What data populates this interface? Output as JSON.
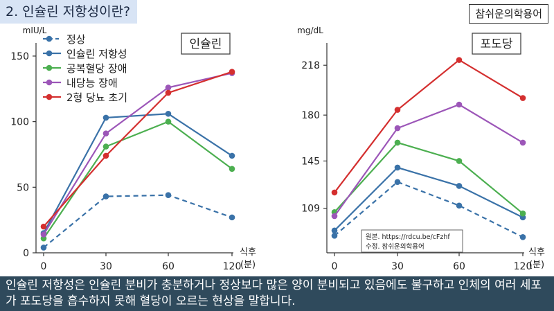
{
  "header": {
    "title": "2. 인슐린 저항성이란?",
    "brand": "참쉬운의학용어"
  },
  "source_note": {
    "line1": "원본. https://rdcu.be/cFzhf",
    "line2": "수정. 참쉬운의학용어"
  },
  "caption": "인슐린 저항성은 인슐린 분비가 충분하거나 정상보다 많은 양이 분비되고 있음에도 불구하고 인체의 여러 세포가 포도당을 흡수하지 못해 혈당이 오르는 현상을 말합니다.",
  "colors": {
    "normal": "#3a72a8",
    "resistance": "#3a72a8",
    "ifg": "#4caf50",
    "igt": "#9c56b8",
    "t2d": "#d42f2f"
  },
  "chart_data": [
    {
      "type": "line",
      "title": "인슐린",
      "ylabel": "mIU/L",
      "xlabel": "식후 (분)",
      "x": [
        0,
        30,
        60,
        120
      ],
      "xticks": [
        "0",
        "30",
        "60",
        "120"
      ],
      "yticks": [
        "0",
        "50",
        "100",
        "150"
      ],
      "ylim": [
        0,
        160
      ],
      "legend_position": "top-left",
      "series": [
        {
          "name": "정상",
          "style": "dashed",
          "values": [
            4,
            43,
            44,
            27
          ]
        },
        {
          "name": "인슐린 저항성",
          "style": "solid",
          "values": [
            15,
            103,
            106,
            74
          ]
        },
        {
          "name": "공복혈당 장애",
          "style": "solid",
          "values": [
            11,
            81,
            100,
            64
          ]
        },
        {
          "name": "내당능 장애",
          "style": "solid",
          "values": [
            14,
            91,
            126,
            137
          ]
        },
        {
          "name": "2형 당뇨 초기",
          "style": "solid",
          "values": [
            20,
            74,
            122,
            138
          ]
        }
      ]
    },
    {
      "type": "line",
      "title": "포도당",
      "ylabel": "mg/dL",
      "xlabel": "식후 (분)",
      "x": [
        0,
        30,
        60,
        120
      ],
      "xticks": [
        "0",
        "30",
        "60",
        "120"
      ],
      "yticks": [
        "109",
        "145",
        "180",
        "218"
      ],
      "ylim": [
        75,
        235
      ],
      "series": [
        {
          "name": "정상",
          "style": "dashed",
          "values": [
            88,
            129,
            111,
            87
          ]
        },
        {
          "name": "인슐린 저항성",
          "style": "solid",
          "values": [
            92,
            140,
            126,
            102
          ]
        },
        {
          "name": "공복혈당 장애",
          "style": "solid",
          "values": [
            106,
            159,
            145,
            105
          ]
        },
        {
          "name": "내당능 장애",
          "style": "solid",
          "values": [
            103,
            170,
            188,
            159
          ]
        },
        {
          "name": "2형 당뇨 초기",
          "style": "solid",
          "values": [
            121,
            184,
            222,
            193
          ]
        }
      ]
    }
  ]
}
